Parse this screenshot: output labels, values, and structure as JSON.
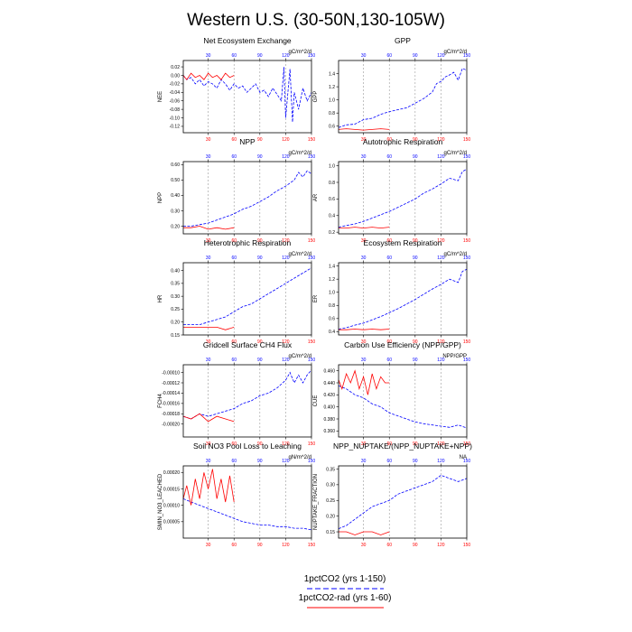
{
  "figure": {
    "title": "Western U.S. (30-50N,130-105W)",
    "legend": [
      {
        "label": "1pctCO2 (yrs 1-150)",
        "color": "#0000ff",
        "style": "dashed"
      },
      {
        "label": "1pctCO2-rad (yrs 1-60)",
        "color": "#ff0000",
        "style": "solid"
      }
    ],
    "colors": {
      "series_1pctCO2": "#0000ff",
      "series_rad": "#ff0000",
      "top_axis_ticks": "#0000ff",
      "bottom_axis_ticks": "#ff0000"
    }
  },
  "chart_data": [
    {
      "type": "line",
      "title": "Net Ecosystem Exchange",
      "ylabel": "NEE",
      "units": "gC/m^2/d",
      "x_ticks": [
        30,
        60,
        90,
        120,
        150
      ],
      "xlim": [
        1,
        150
      ],
      "ylim": [
        -0.135,
        0.035
      ],
      "y_ticks": [
        0.02,
        0.0,
        -0.02,
        -0.04,
        -0.06,
        -0.08,
        -0.1,
        -0.12
      ],
      "y_tick_labels": [
        "0.02",
        "0.00",
        "-0.02",
        "-0.04",
        "-0.06",
        "-0.08",
        "-0.10",
        "-0.12"
      ],
      "grid_x": [
        30,
        60,
        90,
        120
      ],
      "series": [
        {
          "x": [
            1,
            5,
            10,
            15,
            20,
            25,
            30,
            35,
            40,
            45,
            50,
            55,
            60,
            65,
            70,
            75,
            80,
            85,
            90,
            95,
            100,
            105,
            110,
            115,
            118,
            120,
            123,
            125,
            128,
            130,
            135,
            140,
            145,
            150
          ],
          "values": [
            0.0,
            -0.01,
            -0.005,
            -0.02,
            -0.01,
            -0.025,
            -0.015,
            -0.02,
            -0.03,
            -0.01,
            -0.02,
            -0.035,
            -0.02,
            -0.03,
            -0.025,
            -0.04,
            -0.03,
            -0.02,
            -0.04,
            -0.035,
            -0.05,
            -0.03,
            -0.045,
            -0.06,
            0.02,
            -0.1,
            -0.03,
            0.015,
            -0.11,
            -0.04,
            -0.08,
            -0.03,
            -0.06,
            -0.04
          ]
        },
        {
          "x": [
            1,
            5,
            10,
            15,
            20,
            25,
            30,
            35,
            40,
            45,
            50,
            55,
            60
          ],
          "values": [
            0.0,
            -0.01,
            0.005,
            -0.005,
            0.0,
            -0.01,
            0.005,
            -0.005,
            0.0,
            -0.01,
            0.005,
            -0.005,
            0.0
          ]
        }
      ]
    },
    {
      "type": "line",
      "title": "GPP",
      "ylabel": "GPP",
      "units": "gC/m^2/d",
      "x_ticks": [
        30,
        60,
        90,
        120,
        150
      ],
      "xlim": [
        1,
        150
      ],
      "ylim": [
        0.5,
        1.6
      ],
      "y_ticks": [
        0.6,
        0.8,
        1.0,
        1.2,
        1.4
      ],
      "y_tick_labels": [
        "0.6",
        "0.8",
        "1.0",
        "1.2",
        "1.4"
      ],
      "grid_x": [
        30,
        60,
        90,
        120
      ],
      "series": [
        {
          "x": [
            1,
            10,
            20,
            30,
            40,
            50,
            60,
            70,
            80,
            90,
            100,
            110,
            115,
            120,
            125,
            130,
            135,
            140,
            145,
            150
          ],
          "values": [
            0.58,
            0.62,
            0.63,
            0.7,
            0.72,
            0.78,
            0.82,
            0.85,
            0.88,
            0.95,
            1.02,
            1.12,
            1.25,
            1.28,
            1.35,
            1.38,
            1.42,
            1.3,
            1.48,
            1.45
          ]
        },
        {
          "x": [
            1,
            10,
            20,
            30,
            40,
            50,
            60
          ],
          "values": [
            0.55,
            0.56,
            0.55,
            0.54,
            0.55,
            0.56,
            0.55
          ]
        }
      ]
    },
    {
      "type": "line",
      "title": "NPP",
      "ylabel": "NPP",
      "units": "gC/m^2/d",
      "x_ticks": [
        30,
        60,
        90,
        120,
        150
      ],
      "xlim": [
        1,
        150
      ],
      "ylim": [
        0.15,
        0.62
      ],
      "y_ticks": [
        0.2,
        0.3,
        0.4,
        0.5,
        0.6
      ],
      "y_tick_labels": [
        "0.20",
        "0.30",
        "0.40",
        "0.50",
        "0.60"
      ],
      "grid_x": [
        30,
        60,
        90,
        120
      ],
      "series": [
        {
          "x": [
            1,
            10,
            20,
            30,
            40,
            50,
            60,
            70,
            80,
            90,
            100,
            110,
            120,
            130,
            135,
            140,
            145,
            150
          ],
          "values": [
            0.2,
            0.2,
            0.21,
            0.22,
            0.24,
            0.26,
            0.28,
            0.31,
            0.33,
            0.36,
            0.39,
            0.43,
            0.46,
            0.5,
            0.55,
            0.52,
            0.56,
            0.54
          ]
        },
        {
          "x": [
            1,
            10,
            20,
            30,
            40,
            50,
            60
          ],
          "values": [
            0.19,
            0.19,
            0.2,
            0.18,
            0.19,
            0.18,
            0.19
          ]
        }
      ]
    },
    {
      "type": "line",
      "title": "Autotrophic Respiration",
      "ylabel": "AR",
      "units": "gC/m^2/d",
      "x_ticks": [
        30,
        60,
        90,
        120,
        150
      ],
      "xlim": [
        1,
        150
      ],
      "ylim": [
        0.18,
        1.05
      ],
      "y_ticks": [
        0.2,
        0.4,
        0.6,
        0.8,
        1.0
      ],
      "y_tick_labels": [
        "0.2",
        "0.4",
        "0.6",
        "0.8",
        "1.0"
      ],
      "grid_x": [
        30,
        60,
        90,
        120
      ],
      "series": [
        {
          "x": [
            1,
            10,
            20,
            30,
            40,
            50,
            60,
            70,
            80,
            90,
            100,
            110,
            120,
            130,
            140,
            145,
            150
          ],
          "values": [
            0.26,
            0.28,
            0.3,
            0.33,
            0.37,
            0.41,
            0.45,
            0.5,
            0.55,
            0.6,
            0.67,
            0.72,
            0.78,
            0.85,
            0.82,
            0.93,
            0.96
          ]
        },
        {
          "x": [
            1,
            10,
            20,
            30,
            40,
            50,
            60
          ],
          "values": [
            0.25,
            0.25,
            0.26,
            0.25,
            0.26,
            0.25,
            0.26
          ]
        }
      ]
    },
    {
      "type": "line",
      "title": "Heterotrophic Respiration",
      "ylabel": "HR",
      "units": "gC/m^2/d",
      "x_ticks": [
        30,
        60,
        90,
        120,
        150
      ],
      "xlim": [
        1,
        150
      ],
      "ylim": [
        0.15,
        0.43
      ],
      "y_ticks": [
        0.15,
        0.2,
        0.25,
        0.3,
        0.35,
        0.4
      ],
      "y_tick_labels": [
        "0.15",
        "0.20",
        "0.25",
        "0.30",
        "0.35",
        "0.40"
      ],
      "grid_x": [
        30,
        60,
        90,
        120
      ],
      "series": [
        {
          "x": [
            1,
            10,
            20,
            30,
            40,
            50,
            60,
            70,
            80,
            90,
            100,
            110,
            120,
            130,
            140,
            150
          ],
          "values": [
            0.19,
            0.19,
            0.19,
            0.2,
            0.21,
            0.22,
            0.24,
            0.26,
            0.27,
            0.29,
            0.31,
            0.33,
            0.35,
            0.37,
            0.39,
            0.41
          ]
        },
        {
          "x": [
            1,
            10,
            20,
            30,
            40,
            50,
            60
          ],
          "values": [
            0.18,
            0.18,
            0.18,
            0.18,
            0.18,
            0.17,
            0.18
          ]
        }
      ]
    },
    {
      "type": "line",
      "title": "Ecosystem Respiration",
      "ylabel": "ER",
      "units": "gC/m^2/d",
      "x_ticks": [
        30,
        60,
        90,
        120,
        150
      ],
      "xlim": [
        1,
        150
      ],
      "ylim": [
        0.35,
        1.45
      ],
      "y_ticks": [
        0.4,
        0.6,
        0.8,
        1.0,
        1.2,
        1.4
      ],
      "y_tick_labels": [
        "0.4",
        "0.6",
        "0.8",
        "1.0",
        "1.2",
        "1.4"
      ],
      "grid_x": [
        30,
        60,
        90,
        120
      ],
      "series": [
        {
          "x": [
            1,
            10,
            20,
            30,
            40,
            50,
            60,
            70,
            80,
            90,
            100,
            110,
            120,
            130,
            140,
            145,
            150
          ],
          "values": [
            0.44,
            0.46,
            0.5,
            0.53,
            0.58,
            0.63,
            0.69,
            0.75,
            0.82,
            0.89,
            0.97,
            1.05,
            1.12,
            1.2,
            1.15,
            1.32,
            1.35
          ]
        },
        {
          "x": [
            1,
            10,
            20,
            30,
            40,
            50,
            60
          ],
          "values": [
            0.43,
            0.43,
            0.44,
            0.43,
            0.44,
            0.43,
            0.44
          ]
        }
      ]
    },
    {
      "type": "line",
      "title": "Gridcell Surface CH4 Flux",
      "ylabel": "FCH4",
      "units": "gC/m^2/d",
      "x_ticks": [
        30,
        60,
        90,
        120,
        150
      ],
      "xlim": [
        1,
        150
      ],
      "ylim": [
        -0.000225,
        -8.5e-05
      ],
      "y_ticks": [
        -0.0001,
        -0.00012,
        -0.00014,
        -0.00016,
        -0.00018,
        -0.0002
      ],
      "y_tick_labels": [
        "-0.00010",
        "-0.00012",
        "-0.00014",
        "-0.00016",
        "-0.00018",
        "-0.00020"
      ],
      "grid_x": [
        30,
        60,
        90,
        120
      ],
      "series": [
        {
          "x": [
            1,
            10,
            20,
            30,
            40,
            50,
            60,
            70,
            80,
            90,
            100,
            110,
            120,
            125,
            130,
            135,
            140,
            145,
            150
          ],
          "values": [
            -0.000185,
            -0.00019,
            -0.00018,
            -0.000185,
            -0.00018,
            -0.000175,
            -0.00017,
            -0.00016,
            -0.000155,
            -0.000145,
            -0.00014,
            -0.00013,
            -0.000115,
            -0.0001,
            -0.00012,
            -0.000105,
            -0.00012,
            -0.000105,
            -9.5e-05
          ]
        },
        {
          "x": [
            1,
            10,
            20,
            30,
            40,
            50,
            60
          ],
          "values": [
            -0.000185,
            -0.00019,
            -0.00018,
            -0.000195,
            -0.000185,
            -0.00019,
            -0.000195
          ]
        }
      ]
    },
    {
      "type": "line",
      "title": "Carbon Use Efficiency (NPP/GPP)",
      "ylabel": "CUE",
      "units": "NPP/GPP",
      "x_ticks": [
        30,
        60,
        90,
        120,
        150
      ],
      "xlim": [
        1,
        150
      ],
      "ylim": [
        0.35,
        0.47
      ],
      "y_ticks": [
        0.36,
        0.38,
        0.4,
        0.42,
        0.44,
        0.46
      ],
      "y_tick_labels": [
        "0.360",
        "0.380",
        "0.400",
        "0.420",
        "0.440",
        "0.460"
      ],
      "grid_x": [
        30,
        60,
        90,
        120
      ],
      "series": [
        {
          "x": [
            1,
            10,
            20,
            30,
            40,
            50,
            60,
            70,
            80,
            90,
            100,
            110,
            120,
            130,
            140,
            150
          ],
          "values": [
            0.435,
            0.43,
            0.42,
            0.415,
            0.405,
            0.4,
            0.39,
            0.385,
            0.38,
            0.375,
            0.372,
            0.37,
            0.368,
            0.366,
            0.37,
            0.365
          ]
        },
        {
          "x": [
            1,
            5,
            10,
            15,
            20,
            25,
            30,
            35,
            40,
            45,
            50,
            55,
            60
          ],
          "values": [
            0.445,
            0.43,
            0.455,
            0.44,
            0.46,
            0.43,
            0.45,
            0.42,
            0.455,
            0.43,
            0.45,
            0.44,
            0.44
          ]
        }
      ]
    },
    {
      "type": "line",
      "title": "Soil NO3 Pool Loss to Leaching",
      "ylabel": "SMIN_NO3_LEACHED",
      "units": "gN/m^2/d",
      "x_ticks": [
        30,
        60,
        90,
        120,
        150
      ],
      "xlim": [
        1,
        150
      ],
      "ylim": [
        0.0,
        0.00022
      ],
      "y_ticks": [
        5e-05,
        0.0001,
        0.00015,
        0.0002
      ],
      "y_tick_labels": [
        "0.00005",
        "0.00010",
        "0.00015",
        "0.00020"
      ],
      "grid_x": [
        30,
        60,
        90,
        120
      ],
      "series": [
        {
          "x": [
            1,
            10,
            20,
            30,
            40,
            50,
            60,
            70,
            80,
            90,
            100,
            110,
            120,
            130,
            140,
            150
          ],
          "values": [
            0.00012,
            0.00011,
            0.0001,
            9e-05,
            8e-05,
            7e-05,
            6e-05,
            5e-05,
            4.5e-05,
            4e-05,
            4e-05,
            3.5e-05,
            3.5e-05,
            3e-05,
            3e-05,
            2.5e-05
          ]
        },
        {
          "x": [
            1,
            5,
            10,
            15,
            20,
            25,
            30,
            35,
            40,
            45,
            50,
            55,
            60
          ],
          "values": [
            0.00012,
            0.00016,
            0.0001,
            0.00018,
            0.00012,
            0.0002,
            0.00015,
            0.00021,
            0.00012,
            0.00018,
            0.00011,
            0.00019,
            0.00011
          ]
        }
      ]
    },
    {
      "type": "line",
      "title": "NPP_NUPTAKE/(NPP_NUPTAKE+NPP)",
      "ylabel": "NUPTAKE_FRACTION",
      "units": "NA",
      "x_ticks": [
        30,
        60,
        90,
        120,
        150
      ],
      "xlim": [
        1,
        150
      ],
      "ylim": [
        0.13,
        0.36
      ],
      "y_ticks": [
        0.15,
        0.2,
        0.25,
        0.3,
        0.35
      ],
      "y_tick_labels": [
        "0.15",
        "0.20",
        "0.25",
        "0.30",
        "0.35"
      ],
      "grid_x": [
        30,
        60,
        90,
        120
      ],
      "series": [
        {
          "x": [
            1,
            10,
            20,
            30,
            40,
            50,
            60,
            70,
            80,
            90,
            100,
            110,
            120,
            130,
            140,
            150
          ],
          "values": [
            0.16,
            0.17,
            0.19,
            0.21,
            0.23,
            0.24,
            0.25,
            0.27,
            0.28,
            0.29,
            0.3,
            0.31,
            0.33,
            0.32,
            0.31,
            0.32
          ]
        },
        {
          "x": [
            1,
            10,
            20,
            30,
            40,
            50,
            60
          ],
          "values": [
            0.15,
            0.15,
            0.14,
            0.15,
            0.15,
            0.14,
            0.15
          ]
        }
      ]
    }
  ]
}
